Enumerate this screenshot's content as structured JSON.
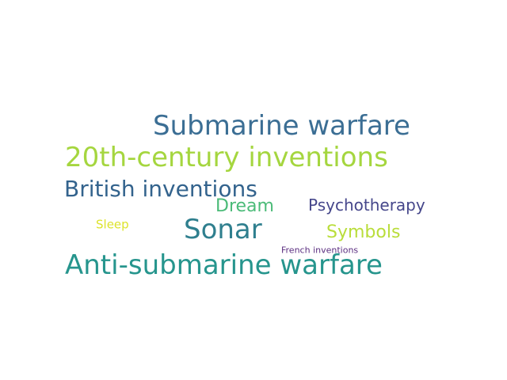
{
  "words": [
    {
      "id": "submarine_warfare",
      "text": "Submarine warfare",
      "color": "#3b6e94"
    },
    {
      "id": "twentieth_century_inventions",
      "text": "20th-century inventions",
      "color": "#a5d63f"
    },
    {
      "id": "british_inventions",
      "text": "British inventions",
      "color": "#33638d"
    },
    {
      "id": "dream",
      "text": "Dream",
      "color": "#4bbb78"
    },
    {
      "id": "psychotherapy",
      "text": "Psychotherapy",
      "color": "#46478b"
    },
    {
      "id": "sonar",
      "text": "Sonar",
      "color": "#2f7f8e"
    },
    {
      "id": "sleep",
      "text": "Sleep",
      "color": "#dde32c"
    },
    {
      "id": "symbols",
      "text": "Symbols",
      "color": "#b9dd3a"
    },
    {
      "id": "french_inventions",
      "text": "French inventions",
      "color": "#5b2e80"
    },
    {
      "id": "anti_submarine_warfare",
      "text": "Anti-submarine warfare",
      "color": "#26958d"
    }
  ]
}
